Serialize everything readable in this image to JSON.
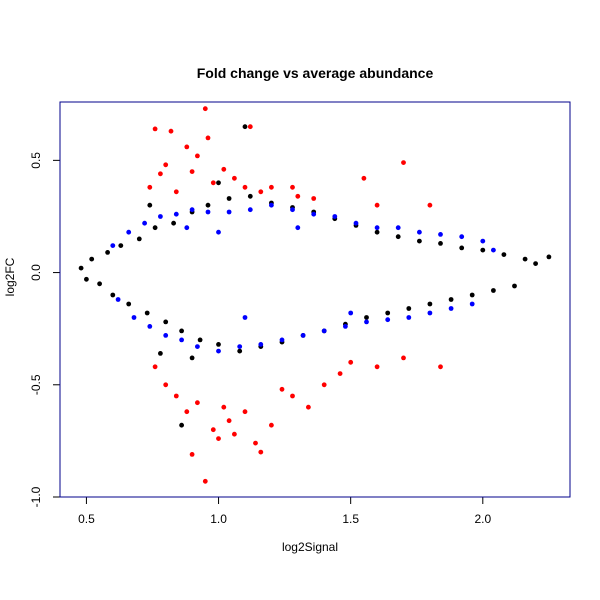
{
  "chart_data": {
    "type": "scatter",
    "title": "Fold change vs average abundance",
    "xlabel": "log2Signal",
    "ylabel": "log2FC",
    "xlim": [
      0.4,
      2.33
    ],
    "ylim": [
      -1.0,
      0.76
    ],
    "x_ticks": [
      0.5,
      1.0,
      1.5,
      2.0
    ],
    "x_tick_labels": [
      "0.5",
      "1.0",
      "1.5",
      "2.0"
    ],
    "y_ticks": [
      -1.0,
      -0.5,
      0.0,
      0.5
    ],
    "y_tick_labels": [
      "-1.0",
      "-0.5",
      "0.0",
      "0.5"
    ],
    "grid": false,
    "frame_color": "#00008b",
    "series": [
      {
        "color": "#000000",
        "points": [
          [
            0.48,
            0.02
          ],
          [
            0.5,
            -0.03
          ],
          [
            0.52,
            0.06
          ],
          [
            0.55,
            -0.05
          ],
          [
            0.58,
            0.09
          ],
          [
            0.6,
            -0.1
          ],
          [
            0.63,
            0.12
          ],
          [
            0.66,
            -0.14
          ],
          [
            0.7,
            0.15
          ],
          [
            0.73,
            -0.18
          ],
          [
            0.76,
            0.2
          ],
          [
            0.8,
            -0.22
          ],
          [
            0.83,
            0.22
          ],
          [
            0.86,
            -0.26
          ],
          [
            0.9,
            0.27
          ],
          [
            0.93,
            -0.3
          ],
          [
            0.96,
            0.3
          ],
          [
            1.0,
            -0.32
          ],
          [
            1.04,
            0.33
          ],
          [
            1.08,
            -0.35
          ],
          [
            1.1,
            0.65
          ],
          [
            1.12,
            0.34
          ],
          [
            1.16,
            -0.33
          ],
          [
            1.2,
            0.31
          ],
          [
            1.24,
            -0.31
          ],
          [
            1.28,
            0.29
          ],
          [
            1.32,
            -0.28
          ],
          [
            1.36,
            0.27
          ],
          [
            1.4,
            -0.26
          ],
          [
            1.44,
            0.24
          ],
          [
            1.48,
            -0.23
          ],
          [
            1.52,
            0.21
          ],
          [
            1.56,
            -0.2
          ],
          [
            1.6,
            0.18
          ],
          [
            1.64,
            -0.18
          ],
          [
            1.68,
            0.16
          ],
          [
            1.72,
            -0.16
          ],
          [
            1.76,
            0.14
          ],
          [
            1.8,
            -0.14
          ],
          [
            1.84,
            0.13
          ],
          [
            1.88,
            -0.12
          ],
          [
            1.92,
            0.11
          ],
          [
            1.96,
            -0.1
          ],
          [
            2.0,
            0.1
          ],
          [
            2.04,
            -0.08
          ],
          [
            2.08,
            0.08
          ],
          [
            2.12,
            -0.06
          ],
          [
            2.16,
            0.06
          ],
          [
            2.2,
            0.04
          ],
          [
            2.25,
            0.07
          ],
          [
            0.86,
            -0.68
          ],
          [
            0.9,
            -0.38
          ],
          [
            0.78,
            -0.36
          ],
          [
            1.0,
            0.4
          ],
          [
            0.74,
            0.3
          ]
        ]
      },
      {
        "color": "#0000ff",
        "points": [
          [
            0.6,
            0.12
          ],
          [
            0.62,
            -0.12
          ],
          [
            0.66,
            0.18
          ],
          [
            0.68,
            -0.2
          ],
          [
            0.72,
            0.22
          ],
          [
            0.74,
            -0.24
          ],
          [
            0.78,
            0.25
          ],
          [
            0.8,
            -0.28
          ],
          [
            0.84,
            0.26
          ],
          [
            0.86,
            -0.3
          ],
          [
            0.9,
            0.28
          ],
          [
            0.92,
            -0.33
          ],
          [
            0.96,
            0.27
          ],
          [
            1.0,
            -0.35
          ],
          [
            1.04,
            0.27
          ],
          [
            1.08,
            -0.33
          ],
          [
            1.12,
            0.28
          ],
          [
            1.16,
            -0.32
          ],
          [
            1.2,
            0.3
          ],
          [
            1.24,
            -0.3
          ],
          [
            1.28,
            0.28
          ],
          [
            1.32,
            -0.28
          ],
          [
            1.36,
            0.26
          ],
          [
            1.4,
            -0.26
          ],
          [
            1.44,
            0.25
          ],
          [
            1.48,
            -0.24
          ],
          [
            1.52,
            0.22
          ],
          [
            1.56,
            -0.22
          ],
          [
            1.6,
            0.2
          ],
          [
            1.64,
            -0.21
          ],
          [
            1.68,
            0.2
          ],
          [
            1.72,
            -0.2
          ],
          [
            1.76,
            0.18
          ],
          [
            1.8,
            -0.18
          ],
          [
            1.84,
            0.17
          ],
          [
            1.88,
            -0.16
          ],
          [
            1.92,
            0.16
          ],
          [
            1.96,
            -0.14
          ],
          [
            2.0,
            0.14
          ],
          [
            2.04,
            0.1
          ],
          [
            0.88,
            0.2
          ],
          [
            1.0,
            0.18
          ],
          [
            1.1,
            -0.2
          ],
          [
            1.3,
            0.2
          ],
          [
            1.5,
            -0.18
          ]
        ]
      },
      {
        "color": "#ff0000",
        "points": [
          [
            0.74,
            0.38
          ],
          [
            0.76,
            0.64
          ],
          [
            0.78,
            0.44
          ],
          [
            0.8,
            0.48
          ],
          [
            0.82,
            0.63
          ],
          [
            0.84,
            0.36
          ],
          [
            0.88,
            0.56
          ],
          [
            0.9,
            0.45
          ],
          [
            0.92,
            0.52
          ],
          [
            0.95,
            0.73
          ],
          [
            0.96,
            0.6
          ],
          [
            0.98,
            0.4
          ],
          [
            1.02,
            0.46
          ],
          [
            1.06,
            0.42
          ],
          [
            1.1,
            0.38
          ],
          [
            1.12,
            0.65
          ],
          [
            1.16,
            0.36
          ],
          [
            1.2,
            0.38
          ],
          [
            1.28,
            0.38
          ],
          [
            1.3,
            0.34
          ],
          [
            1.36,
            0.33
          ],
          [
            1.55,
            0.42
          ],
          [
            1.6,
            0.3
          ],
          [
            1.7,
            0.49
          ],
          [
            1.8,
            0.3
          ],
          [
            0.76,
            -0.42
          ],
          [
            0.8,
            -0.5
          ],
          [
            0.84,
            -0.55
          ],
          [
            0.88,
            -0.62
          ],
          [
            0.9,
            -0.81
          ],
          [
            0.92,
            -0.58
          ],
          [
            0.95,
            -0.93
          ],
          [
            0.98,
            -0.7
          ],
          [
            1.0,
            -0.74
          ],
          [
            1.02,
            -0.6
          ],
          [
            1.04,
            -0.66
          ],
          [
            1.06,
            -0.72
          ],
          [
            1.1,
            -0.62
          ],
          [
            1.14,
            -0.76
          ],
          [
            1.16,
            -0.8
          ],
          [
            1.2,
            -0.68
          ],
          [
            1.24,
            -0.52
          ],
          [
            1.28,
            -0.55
          ],
          [
            1.34,
            -0.6
          ],
          [
            1.4,
            -0.5
          ],
          [
            1.46,
            -0.45
          ],
          [
            1.5,
            -0.4
          ],
          [
            1.6,
            -0.42
          ],
          [
            1.7,
            -0.38
          ],
          [
            1.84,
            -0.42
          ]
        ]
      }
    ]
  }
}
